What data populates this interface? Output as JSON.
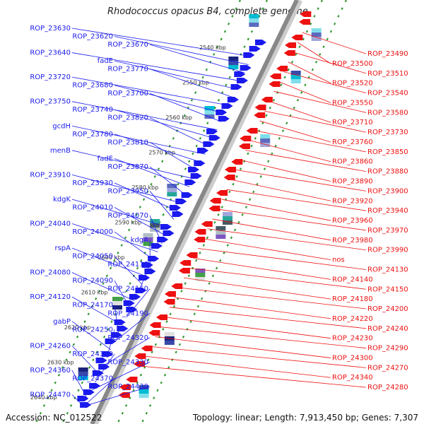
{
  "title": "Rhodococcus opacus B4, complete genome",
  "footer": {
    "accession": "Accession: NC_012522",
    "topology": "Topology: linear; Length: 7,913,450 bp; Genes: 7,307"
  },
  "colors": {
    "forward": "#1a1aee",
    "reverse": "#ee1111",
    "backbone": "#888888",
    "tick": "#339933"
  },
  "kbp_ticks": [
    "2540 kbp",
    "2550 kbp",
    "2560 kbp",
    "2570 kbp",
    "2580 kbp",
    "2590 kbp",
    "2600 kbp",
    "2610 kbp",
    "2620 kbp",
    "2630 kbp",
    "2640 kbp"
  ],
  "left_labels": [
    "ROP_23630",
    "ROP_23620",
    "ROP_23670",
    "ROP_23640",
    "fadE",
    "ROP_23770",
    "ROP_23720",
    "ROP_23680",
    "ROP_23700",
    "ROP_23750",
    "ROP_23740",
    "ROP_23820",
    "gcdH",
    "ROP_23780",
    "ROP_23810",
    "menB",
    "fadE",
    "ROP_23870",
    "ROP_23910",
    "ROP_23930",
    "ROP_23950",
    "kdgK",
    "ROP_24010",
    "ROP_24070",
    "ROP_24040",
    "ROP_24000",
    "kdgA",
    "rspA",
    "ROP_24050",
    "ROP_24110",
    "ROP_24080",
    "ROP_24090",
    "ROP_24160",
    "ROP_24120",
    "ROP_24170",
    "ROP_24190",
    "gabP",
    "ROP_24250",
    "ROP_24320",
    "ROP_24260",
    "ROP_24310",
    "ROP_24330",
    "ROP_24360",
    "ROP_24370",
    "ROP_24430",
    "ROP_24470"
  ],
  "right_labels": [
    "ROP_23490",
    "ROP_23500",
    "ROP_23510",
    "ROP_23520",
    "ROP_23540",
    "ROP_23550",
    "ROP_23580",
    "ROP_23710",
    "ROP_23730",
    "ROP_23760",
    "ROP_23850",
    "ROP_23860",
    "ROP_23880",
    "ROP_23890",
    "ROP_23900",
    "ROP_23920",
    "ROP_23940",
    "ROP_23960",
    "ROP_23970",
    "ROP_23980",
    "ROP_23990",
    "nos",
    "ROP_24130",
    "ROP_24140",
    "ROP_24150",
    "ROP_24180",
    "ROP_24200",
    "ROP_24220",
    "ROP_24240",
    "ROP_24230",
    "ROP_24290",
    "ROP_24300",
    "ROP_24270",
    "ROP_24340",
    "ROP_24280"
  ]
}
